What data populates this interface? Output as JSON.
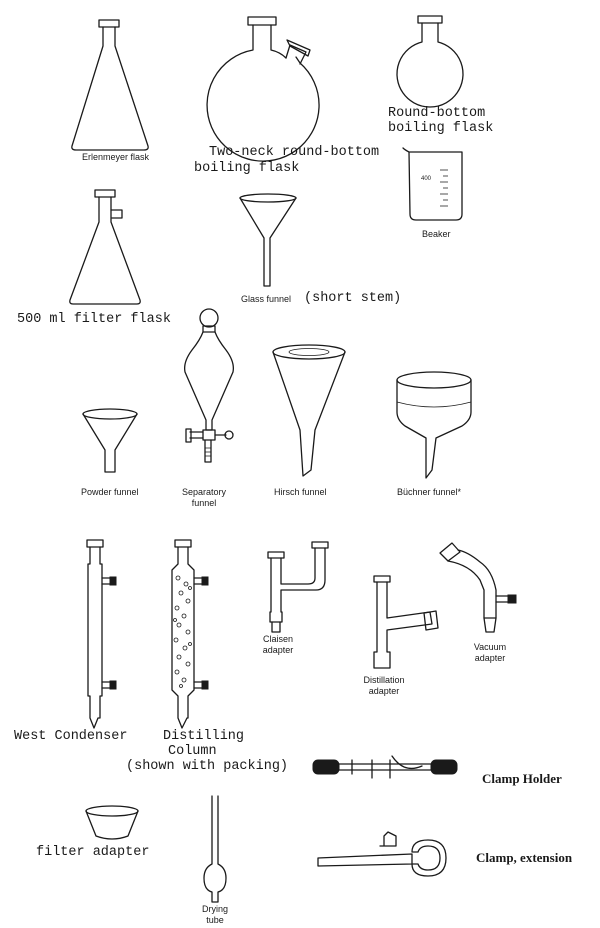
{
  "labels": {
    "erlenmeyer": "Erlenmeyer flask",
    "two_neck_line1": "Two-neck round-bottom",
    "two_neck_line2": "boiling flask",
    "round_bottom_line1": "Round-bottom",
    "round_bottom_line2": "boiling flask",
    "beaker": "Beaker",
    "beaker_mark": "400",
    "filter_flask": "500 ml filter flask",
    "glass_funnel": "Glass funnel",
    "short_stem": "(short stem)",
    "powder_funnel": "Powder funnel",
    "separatory_line1": "Separatory",
    "separatory_line2": "funnel",
    "hirsch_funnel": "Hirsch funnel",
    "buchner_funnel": "Büchner funnel*",
    "claisen_line1": "Claisen",
    "claisen_line2": "adapter",
    "distillation_line1": "Distillation",
    "distillation_line2": "adapter",
    "vacuum_line1": "Vacuum",
    "vacuum_line2": "adapter",
    "west_condenser": "West Condenser",
    "distilling_line1": "Distilling",
    "distilling_line2": "Column",
    "distilling_line3": "(shown with packing)",
    "clamp_holder": "Clamp Holder",
    "filter_adapter": "filter adapter",
    "drying_line1": "Drying",
    "drying_line2": "tube",
    "clamp_extension": "Clamp, extension"
  }
}
